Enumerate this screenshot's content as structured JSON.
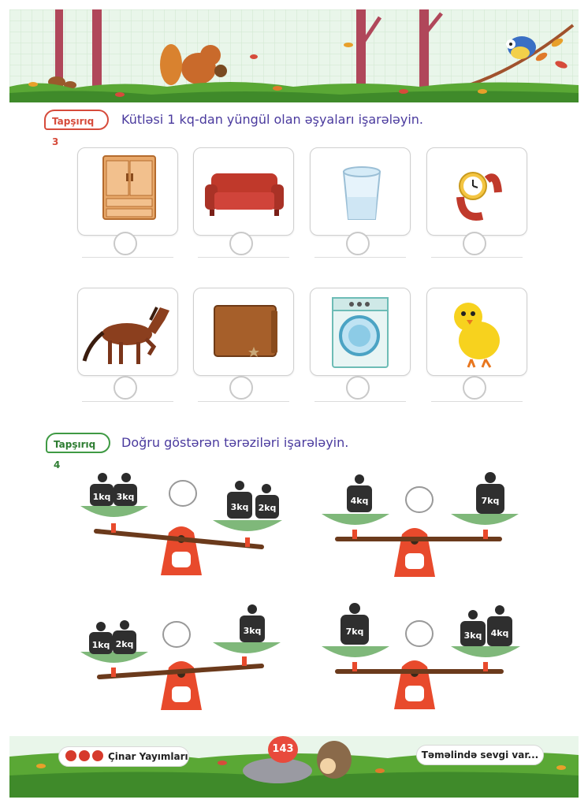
{
  "task3": {
    "badge": "Tapşırıq 3",
    "text": "Kütləsi 1 kq-dan yüngül olan əşyaları işarələyin.",
    "items": [
      "wardrobe-icon",
      "sofa-icon",
      "glass-icon",
      "wristwatch-icon",
      "horse-icon",
      "wallet-icon",
      "washing-machine-icon",
      "chick-icon"
    ]
  },
  "task4": {
    "badge": "Tapşırıq 4",
    "text": "Doğru göstərən tərəziləri işarələyin.",
    "scales": [
      {
        "left": [
          "1kq",
          "3kq"
        ],
        "right": [
          "3kq",
          "2kq"
        ],
        "tilt": "left-down"
      },
      {
        "left": [
          "4kq"
        ],
        "right": [
          "7kq"
        ],
        "tilt": "level"
      },
      {
        "left": [
          "1kq",
          "2kq"
        ],
        "right": [
          "3kq"
        ],
        "tilt": "left-down"
      },
      {
        "left": [
          "7kq"
        ],
        "right": [
          "3kq",
          "4kq"
        ],
        "tilt": "level"
      }
    ]
  },
  "footer": {
    "publisher": "Çinar Yayımları",
    "page_number": "143",
    "slogan": "Təməlində sevgi var..."
  },
  "colors": {
    "accent_red": "#d64b3b",
    "accent_green": "#3f9a44",
    "text_blue": "#4a3a9e"
  }
}
